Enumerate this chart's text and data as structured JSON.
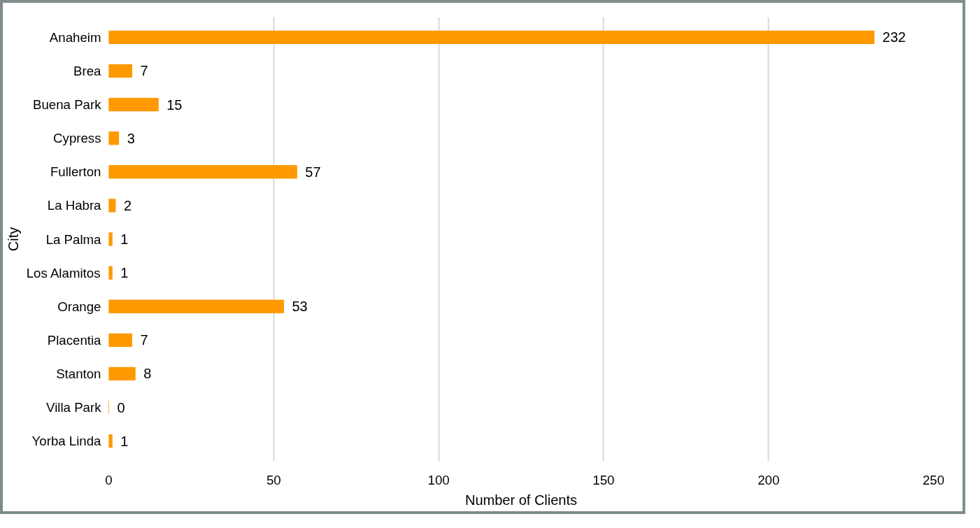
{
  "chart_data": {
    "type": "bar",
    "orientation": "horizontal",
    "xlabel": "Number of Clients",
    "ylabel": "City",
    "categories": [
      "Anaheim",
      "Brea",
      "Buena Park",
      "Cypress",
      "Fullerton",
      "La Habra",
      "La Palma",
      "Los Alamitos",
      "Orange",
      "Placentia",
      "Stanton",
      "Villa Park",
      "Yorba Linda"
    ],
    "values": [
      232,
      7,
      15,
      3,
      57,
      2,
      1,
      1,
      53,
      7,
      8,
      0,
      1
    ],
    "color": "#ff9900",
    "xlim": [
      0,
      250
    ],
    "xticks": [
      0,
      50,
      100,
      150,
      200,
      250
    ],
    "grid": "x",
    "data_labels": true
  }
}
